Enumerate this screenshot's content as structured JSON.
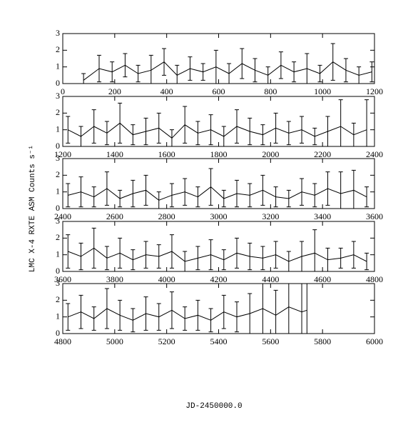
{
  "xlabel": "JD-2450000.0",
  "ylabel": "LMC X-4 RXTE ASM Counts s⁻¹",
  "chart_data": [
    {
      "type": "errorbar",
      "xlim": [
        0,
        1200
      ],
      "xticks": [
        0,
        200,
        400,
        600,
        800,
        1000,
        1200
      ],
      "ylim": [
        0,
        3
      ],
      "yticks": [
        0,
        1,
        2,
        3
      ],
      "color": "#000000",
      "x": [
        80,
        140,
        190,
        240,
        290,
        340,
        390,
        440,
        490,
        540,
        590,
        640,
        690,
        740,
        790,
        840,
        890,
        940,
        990,
        1040,
        1090,
        1140,
        1190
      ],
      "values": [
        0.2,
        0.9,
        0.7,
        1.1,
        0.6,
        0.8,
        1.3,
        0.5,
        0.9,
        0.7,
        1.0,
        0.6,
        1.2,
        0.8,
        0.5,
        1.1,
        0.7,
        0.9,
        0.6,
        1.3,
        0.8,
        0.5,
        0.7
      ],
      "errors": [
        0.4,
        0.8,
        0.6,
        0.7,
        0.5,
        0.9,
        0.8,
        0.6,
        0.7,
        0.5,
        1.0,
        0.6,
        0.9,
        0.7,
        0.5,
        0.8,
        0.6,
        0.9,
        0.5,
        1.1,
        0.7,
        0.5,
        0.6
      ]
    },
    {
      "type": "errorbar",
      "xlim": [
        1200,
        2400
      ],
      "xticks": [
        1200,
        1400,
        1600,
        1800,
        2000,
        2200,
        2400
      ],
      "ylim": [
        0,
        3
      ],
      "yticks": [
        0,
        1,
        2,
        3
      ],
      "color": "#000000",
      "x": [
        1220,
        1270,
        1320,
        1370,
        1420,
        1470,
        1520,
        1570,
        1620,
        1670,
        1720,
        1770,
        1820,
        1870,
        1920,
        1970,
        2020,
        2070,
        2120,
        2170,
        2220,
        2270,
        2320,
        2370
      ],
      "values": [
        1.0,
        0.6,
        1.2,
        0.8,
        1.4,
        0.7,
        0.9,
        1.1,
        0.5,
        1.3,
        0.8,
        1.0,
        0.6,
        1.2,
        0.9,
        0.7,
        1.1,
        0.8,
        1.0,
        0.6,
        0.9,
        1.2,
        0.7,
        1.0
      ],
      "errors": [
        0.8,
        0.6,
        1.0,
        0.7,
        1.2,
        0.6,
        0.8,
        0.9,
        0.5,
        1.1,
        0.7,
        0.9,
        0.6,
        1.0,
        0.8,
        0.6,
        0.9,
        0.7,
        0.8,
        0.5,
        0.9,
        1.6,
        0.7,
        1.8
      ]
    },
    {
      "type": "errorbar",
      "xlim": [
        2400,
        3600
      ],
      "xticks": [
        2400,
        2600,
        2800,
        3000,
        3200,
        3400,
        3600
      ],
      "ylim": [
        0,
        3
      ],
      "yticks": [
        0,
        1,
        2,
        3
      ],
      "color": "#000000",
      "x": [
        2420,
        2470,
        2520,
        2570,
        2620,
        2670,
        2720,
        2770,
        2820,
        2870,
        2920,
        2970,
        3020,
        3070,
        3120,
        3170,
        3220,
        3270,
        3320,
        3370,
        3420,
        3470,
        3520,
        3570
      ],
      "values": [
        0.8,
        1.0,
        0.7,
        1.2,
        0.6,
        0.9,
        1.1,
        0.5,
        0.8,
        1.0,
        0.7,
        1.3,
        0.6,
        0.9,
        0.8,
        1.1,
        0.7,
        0.6,
        1.0,
        0.8,
        1.2,
        0.9,
        1.1,
        0.7
      ],
      "errors": [
        0.7,
        0.9,
        0.6,
        1.0,
        0.5,
        0.8,
        0.9,
        0.5,
        0.7,
        0.8,
        0.6,
        1.1,
        0.5,
        0.8,
        0.7,
        0.9,
        0.6,
        0.5,
        0.8,
        0.7,
        1.0,
        1.3,
        1.2,
        0.6
      ]
    },
    {
      "type": "errorbar",
      "xlim": [
        3600,
        4800
      ],
      "xticks": [
        3600,
        3800,
        4000,
        4200,
        4400,
        4600,
        4800
      ],
      "ylim": [
        0,
        3
      ],
      "yticks": [
        0,
        1,
        2,
        3
      ],
      "color": "#000000",
      "x": [
        3620,
        3670,
        3720,
        3770,
        3820,
        3870,
        3920,
        3970,
        4020,
        4070,
        4120,
        4170,
        4220,
        4270,
        4320,
        4370,
        4420,
        4470,
        4520,
        4570,
        4620,
        4670,
        4720,
        4770
      ],
      "values": [
        1.2,
        0.9,
        1.4,
        0.8,
        1.1,
        0.7,
        1.0,
        0.9,
        1.2,
        0.6,
        0.8,
        1.0,
        0.7,
        1.1,
        0.9,
        0.8,
        1.0,
        0.6,
        0.9,
        1.1,
        0.7,
        0.8,
        1.0,
        0.6
      ],
      "errors": [
        1.0,
        0.8,
        1.2,
        0.7,
        0.9,
        0.6,
        0.8,
        0.7,
        1.0,
        0.6,
        0.7,
        0.9,
        0.6,
        0.9,
        0.8,
        0.7,
        0.8,
        0.6,
        0.9,
        1.4,
        0.7,
        0.6,
        0.8,
        0.5
      ]
    },
    {
      "type": "errorbar",
      "xlim": [
        4800,
        6000
      ],
      "xticks": [
        4800,
        5000,
        5200,
        5400,
        5600,
        5800,
        6000
      ],
      "ylim": [
        0,
        3
      ],
      "yticks": [
        0,
        1,
        2,
        3
      ],
      "color": "#000000",
      "x": [
        4820,
        4870,
        4920,
        4970,
        5020,
        5070,
        5120,
        5170,
        5220,
        5270,
        5320,
        5370,
        5420,
        5470,
        5520,
        5570,
        5620,
        5670,
        5720,
        5740
      ],
      "values": [
        1.0,
        1.3,
        0.9,
        1.5,
        1.1,
        0.8,
        1.2,
        1.0,
        1.4,
        0.9,
        1.1,
        0.8,
        1.3,
        1.0,
        1.2,
        1.5,
        1.1,
        1.6,
        1.3,
        1.4
      ],
      "errors": [
        0.8,
        1.0,
        0.7,
        1.2,
        0.9,
        0.7,
        1.0,
        0.8,
        1.1,
        0.7,
        0.9,
        0.7,
        1.0,
        0.9,
        1.2,
        1.8,
        1.5,
        2.2,
        2.0,
        1.6
      ]
    }
  ]
}
